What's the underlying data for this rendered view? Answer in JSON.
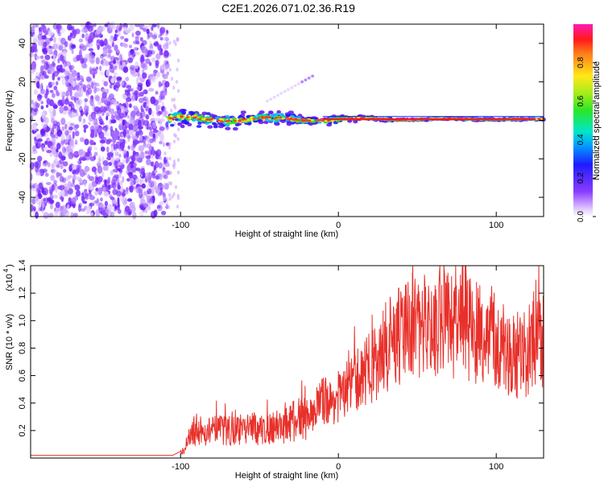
{
  "title": "C2E1.2026.071.02.36.R19",
  "chart_data": [
    {
      "type": "heatmap",
      "name": "spectrogram",
      "xlabel": "Height of straight line (km)",
      "ylabel": "Frequency (Hz)",
      "xlim": [
        -195,
        130
      ],
      "ylim": [
        -50,
        50
      ],
      "xticks": [
        -100,
        0,
        100
      ],
      "yticks": [
        -40,
        -20,
        0,
        20,
        40
      ],
      "colorbar": {
        "label": "Normalized spectral amplitude",
        "range": [
          0,
          1
        ],
        "ticks": [
          "0.0",
          "0.2",
          "0.4",
          "0.6",
          "0.8"
        ]
      },
      "features": {
        "noise_region_end_km": -108,
        "carrier_frequency_hz": 0.6,
        "carrier_spread_hz_at_start": 8,
        "carrier_spread_hz_at_end": 1
      }
    },
    {
      "type": "line",
      "name": "snr",
      "color": "#e8302a",
      "xlabel": "Height of straight line (km)",
      "ylabel": "SNR (10 * v/v)",
      "yexponent_label": "(x10",
      "yexponent_power": "4",
      "yexponent_close": ")",
      "xlim": [
        -195,
        130
      ],
      "ylim": [
        0,
        1.4
      ],
      "xticks": [
        -100,
        0,
        100
      ],
      "yticks": [
        "0.2",
        "0.4",
        "0.6",
        "0.8",
        "1.0",
        "1.2",
        "1.4"
      ],
      "x": [
        -195,
        -180,
        -160,
        -140,
        -120,
        -105,
        -98,
        -96,
        -94,
        -92,
        -90,
        -88,
        -85,
        -80,
        -75,
        -70,
        -65,
        -60,
        -55,
        -50,
        -45,
        -40,
        -35,
        -30,
        -25,
        -20,
        -15,
        -10,
        -5,
        0,
        5,
        10,
        15,
        20,
        25,
        30,
        35,
        40,
        45,
        50,
        55,
        60,
        65,
        70,
        75,
        80,
        85,
        90,
        95,
        100,
        105,
        110,
        115,
        120,
        125,
        130
      ],
      "y": [
        0.02,
        0.02,
        0.02,
        0.02,
        0.02,
        0.02,
        0.06,
        0.1,
        0.16,
        0.2,
        0.19,
        0.2,
        0.19,
        0.2,
        0.2,
        0.2,
        0.21,
        0.2,
        0.22,
        0.2,
        0.22,
        0.24,
        0.23,
        0.26,
        0.28,
        0.3,
        0.36,
        0.42,
        0.4,
        0.45,
        0.5,
        0.52,
        0.62,
        0.66,
        0.72,
        0.8,
        0.86,
        0.88,
        1.0,
        0.92,
        0.96,
        0.9,
        1.0,
        1.02,
        0.98,
        1.05,
        0.9,
        0.9,
        0.92,
        0.82,
        0.8,
        0.74,
        0.72,
        0.78,
        0.82,
        0.86
      ]
    }
  ]
}
